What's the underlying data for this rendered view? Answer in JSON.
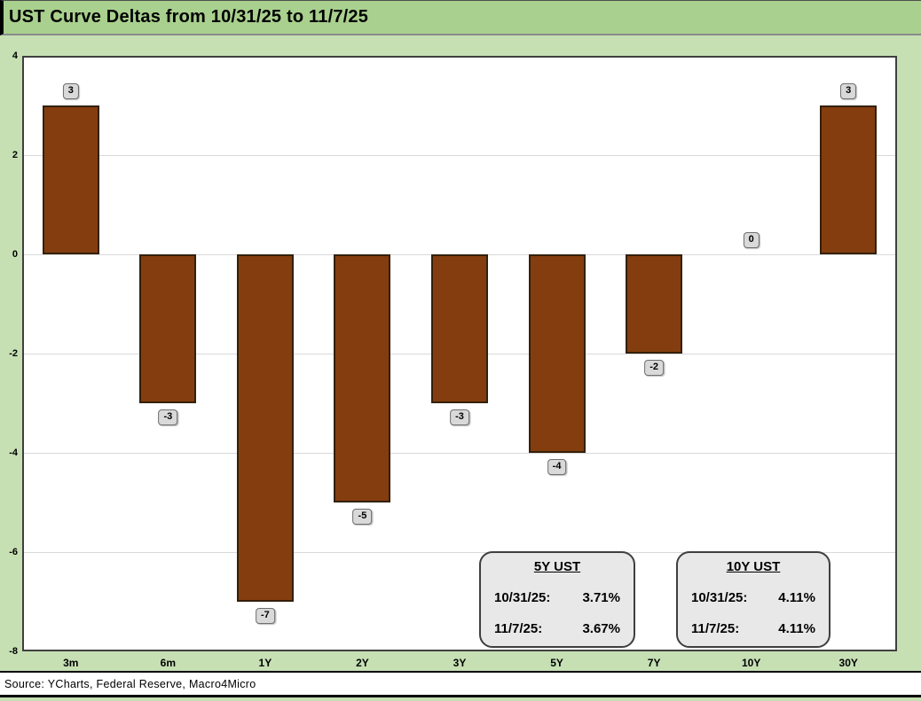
{
  "header": {
    "title": "UST Curve Deltas from 10/31/25 to 11/7/25"
  },
  "chart_data": {
    "type": "bar",
    "title": "UST Curve Deltas from 10/31/25 to 11/7/25",
    "categories": [
      "3m",
      "6m",
      "1Y",
      "2Y",
      "3Y",
      "5Y",
      "7Y",
      "10Y",
      "30Y"
    ],
    "values": [
      3,
      -3,
      -7,
      -5,
      -3,
      -4,
      -2,
      0,
      3
    ],
    "xlabel": "",
    "ylabel": "",
    "ylim": [
      -8,
      4
    ],
    "ytick_step": 2,
    "grid": true,
    "legend": "none",
    "bar_color": "#843D0E",
    "bar_border_color": "#33200A",
    "data_labels": [
      "3",
      "-3",
      "-7",
      "-5",
      "-3",
      "-4",
      "-2",
      "0",
      "3"
    ]
  },
  "callouts": [
    {
      "title": "5Y UST",
      "rows": [
        {
          "label": "10/31/25:",
          "value": "3.71%"
        },
        {
          "label": "11/7/25:",
          "value": "3.67%"
        }
      ]
    },
    {
      "title": "10Y UST",
      "rows": [
        {
          "label": "10/31/25:",
          "value": "4.11%"
        },
        {
          "label": "11/7/25:",
          "value": "4.11%"
        }
      ]
    }
  ],
  "source": {
    "text": "Source: YCharts, Federal Reserve, Macro4Micro"
  },
  "colors": {
    "title_bg": "#A9D08E",
    "body_bg": "#C6E0B4",
    "plot_bg": "#FFFFFF",
    "plot_border": "#3F3F3F",
    "gridline": "#D9D9D9",
    "bar_fill": "#843D0E",
    "label_box_bg": "#D9D9D9",
    "callout_bg": "#E9E8E8"
  }
}
